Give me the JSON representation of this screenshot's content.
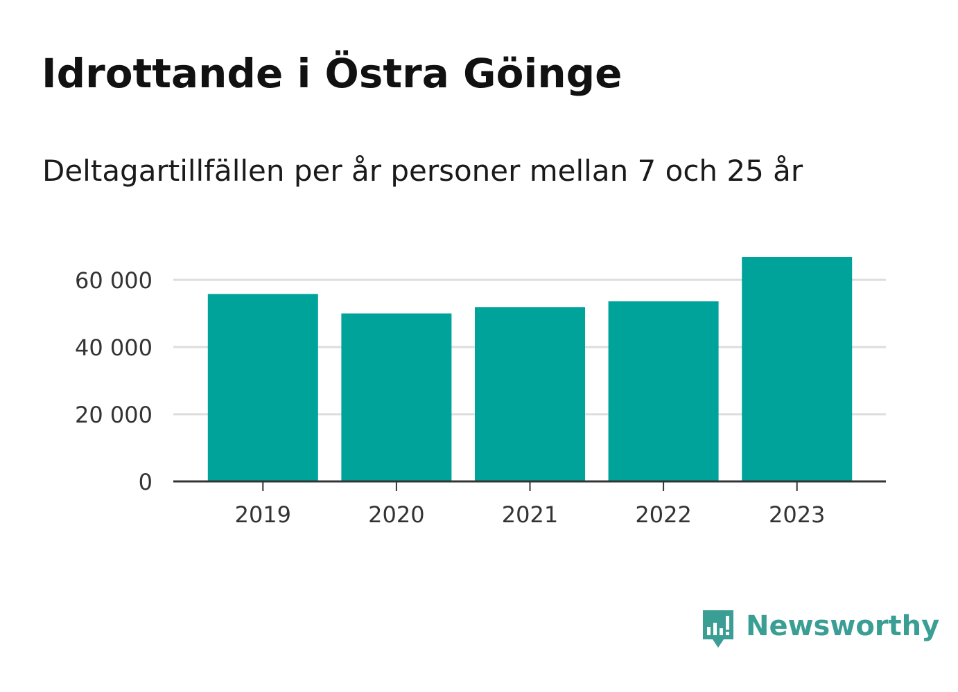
{
  "title": "Idrottande i Östra Göinge",
  "subtitle": "Deltagartillfällen per år personer mellan 7 och 25 år",
  "brand": {
    "name": "Newsworthy",
    "icon": "newsworthy-logo-icon",
    "color": "#3a9e94"
  },
  "colors": {
    "bar": "#00a39a",
    "grid": "#dddddd",
    "axis": "#333333"
  },
  "chart_data": {
    "type": "bar",
    "categories": [
      "2019",
      "2020",
      "2021",
      "2022",
      "2023"
    ],
    "values": [
      55800,
      50000,
      51900,
      53600,
      66800
    ],
    "ylim": [
      0,
      70000
    ],
    "yticks": [
      0,
      20000,
      40000,
      60000
    ],
    "ytick_labels": [
      "0",
      "20 000",
      "40 000",
      "60 000"
    ],
    "grid": true,
    "legend": "none",
    "xlabel": "",
    "ylabel": ""
  }
}
